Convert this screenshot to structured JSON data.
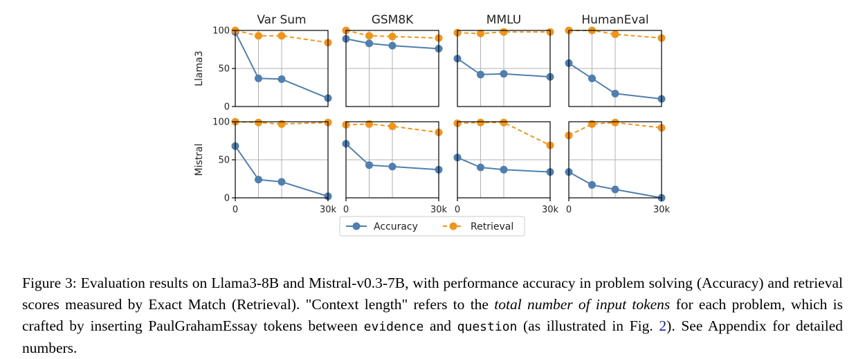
{
  "chart_data": {
    "type": "line",
    "columns": [
      "Var Sum",
      "GSM8K",
      "MMLU",
      "HumanEval"
    ],
    "rows": [
      "Llama3",
      "Mistral"
    ],
    "x": [
      0,
      7500,
      15000,
      30000
    ],
    "xlim": [
      0,
      30000
    ],
    "x_tick_labels": [
      "0",
      "30k"
    ],
    "ylim": [
      0,
      100
    ],
    "y_ticks": [
      0,
      50,
      100
    ],
    "grid": true,
    "legend": {
      "position": "bottom-center",
      "entries": [
        "Accuracy",
        "Retrieval"
      ]
    },
    "colors": {
      "Accuracy": "#4f7fb0",
      "Retrieval": "#f39416"
    },
    "panels": [
      {
        "row": "Llama3",
        "column": "Var Sum",
        "series": [
          {
            "name": "Accuracy",
            "values": [
              98,
              37,
              36,
              11
            ]
          },
          {
            "name": "Retrieval",
            "values": [
              100,
              93,
              93,
              84
            ]
          }
        ]
      },
      {
        "row": "Llama3",
        "column": "GSM8K",
        "series": [
          {
            "name": "Accuracy",
            "values": [
              89,
              83,
              80,
              76
            ]
          },
          {
            "name": "Retrieval",
            "values": [
              100,
              93,
              92,
              90
            ]
          }
        ]
      },
      {
        "row": "Llama3",
        "column": "MMLU",
        "series": [
          {
            "name": "Accuracy",
            "values": [
              63,
              42,
              43,
              39
            ]
          },
          {
            "name": "Retrieval",
            "values": [
              97,
              96,
              98,
              98
            ]
          }
        ]
      },
      {
        "row": "Llama3",
        "column": "HumanEval",
        "series": [
          {
            "name": "Accuracy",
            "values": [
              57,
              37,
              17,
              10
            ]
          },
          {
            "name": "Retrieval",
            "values": [
              100,
              100,
              95,
              90
            ]
          }
        ]
      },
      {
        "row": "Mistral",
        "column": "Var Sum",
        "series": [
          {
            "name": "Accuracy",
            "values": [
              68,
              24,
              21,
              2
            ]
          },
          {
            "name": "Retrieval",
            "values": [
              100,
              99,
              97,
              99
            ]
          }
        ]
      },
      {
        "row": "Mistral",
        "column": "GSM8K",
        "series": [
          {
            "name": "Accuracy",
            "values": [
              71,
              43,
              41,
              37
            ]
          },
          {
            "name": "Retrieval",
            "values": [
              96,
              97,
              94,
              86
            ]
          }
        ]
      },
      {
        "row": "Mistral",
        "column": "MMLU",
        "series": [
          {
            "name": "Accuracy",
            "values": [
              53,
              40,
              37,
              34
            ]
          },
          {
            "name": "Retrieval",
            "values": [
              98,
              99,
              99,
              69
            ]
          }
        ]
      },
      {
        "row": "Mistral",
        "column": "HumanEval",
        "series": [
          {
            "name": "Accuracy",
            "values": [
              34,
              17,
              11,
              0
            ]
          },
          {
            "name": "Retrieval",
            "values": [
              82,
              97,
              99,
              92
            ]
          }
        ]
      }
    ]
  },
  "caption": {
    "lead": "Figure 3: Evaluation results on Llama3-8B and Mistral-v0.3-7B, with performance accuracy in problem solving (Accuracy) and retrieval scores measured by Exact Match (Retrieval). \"Context length\" refers to the ",
    "italic": "total number of input tokens",
    "middle": " for each problem, which is crafted by inserting PaulGrahamEssay tokens between ",
    "code1": "evidence",
    "and": " and ",
    "code2": "question",
    "pre_ref": " (as illustrated in Fig. ",
    "ref": "2",
    "tail": "). See Appendix for detailed numbers."
  }
}
